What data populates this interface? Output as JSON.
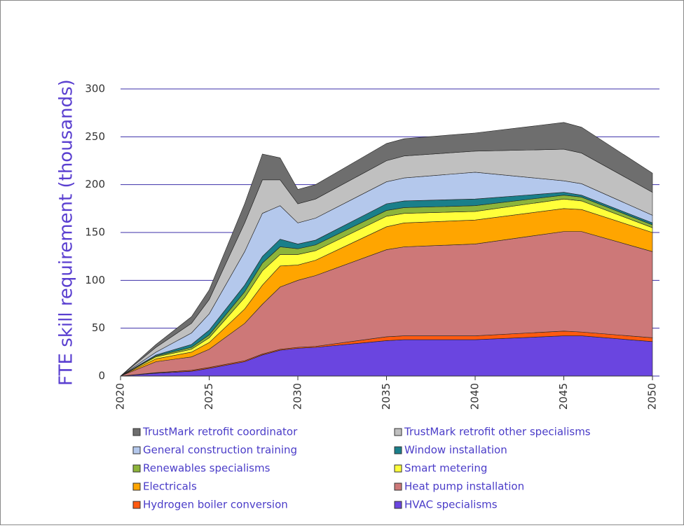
{
  "chart_data": {
    "type": "stacked-area",
    "ylabel": "FTE skill requirement (thousands)",
    "x": [
      2020,
      2022,
      2024,
      2025,
      2027,
      2028,
      2029,
      2030,
      2031,
      2035,
      2036,
      2040,
      2045,
      2046,
      2050
    ],
    "xlim": [
      2020,
      2050
    ],
    "xticks": [
      2020,
      2025,
      2030,
      2035,
      2040,
      2045,
      2050
    ],
    "ylim": [
      0,
      300
    ],
    "yticks": [
      0,
      50,
      100,
      150,
      200,
      250,
      300
    ],
    "grid": true,
    "series": [
      {
        "name": "HVAC specialisms",
        "color": "#6a45e0",
        "values": [
          0,
          3,
          5,
          8,
          15,
          22,
          27,
          29,
          30,
          37,
          38,
          38,
          42,
          42,
          36
        ]
      },
      {
        "name": "Hydrogen boiler conversion",
        "color": "#ff5a10",
        "values": [
          0,
          0.5,
          1,
          1,
          1,
          1,
          1,
          1,
          1,
          4,
          4,
          4,
          5,
          4,
          4
        ]
      },
      {
        "name": "Heat pump installation",
        "color": "#cd7878",
        "values": [
          0,
          11.5,
          14,
          19,
          39,
          52,
          65,
          70,
          74,
          91,
          93,
          96,
          104,
          105,
          90
        ]
      },
      {
        "name": "Electricals",
        "color": "#ffa500",
        "values": [
          0,
          3,
          5,
          7,
          15,
          20,
          22,
          16,
          16,
          24,
          25,
          25,
          24,
          23,
          20
        ]
      },
      {
        "name": "Smart metering",
        "color": "#ffff3a",
        "values": [
          0,
          2,
          3,
          5,
          12,
          15,
          12,
          11,
          10,
          11,
          10,
          9,
          10,
          9,
          5
        ]
      },
      {
        "name": "Renewables specialisms",
        "color": "#8db43a",
        "values": [
          0,
          1,
          2,
          3,
          6,
          8,
          8,
          6,
          6,
          6,
          6,
          6,
          4,
          4,
          3
        ]
      },
      {
        "name": "Window installation",
        "color": "#1a7f8a",
        "values": [
          0,
          1,
          3,
          5,
          7,
          7,
          8,
          5,
          5,
          7,
          7,
          7,
          3,
          2,
          2
        ]
      },
      {
        "name": "General construction training",
        "color": "#b4c8ec",
        "values": [
          0,
          3,
          12,
          17,
          35,
          45,
          35,
          22,
          23,
          23,
          24,
          28,
          12,
          12,
          8
        ]
      },
      {
        "name": "TrustMark retrofit other specialisms",
        "color": "#c0c0c0",
        "values": [
          0,
          5,
          10,
          15,
          30,
          35,
          27,
          20,
          20,
          22,
          23,
          22,
          33,
          32,
          24
        ]
      },
      {
        "name": "TrustMark retrofit coordinator",
        "color": "#6e6e6e",
        "values": [
          0,
          3,
          7,
          10,
          20,
          27,
          23,
          15,
          15,
          18,
          18,
          19,
          28,
          27,
          20
        ]
      }
    ]
  }
}
